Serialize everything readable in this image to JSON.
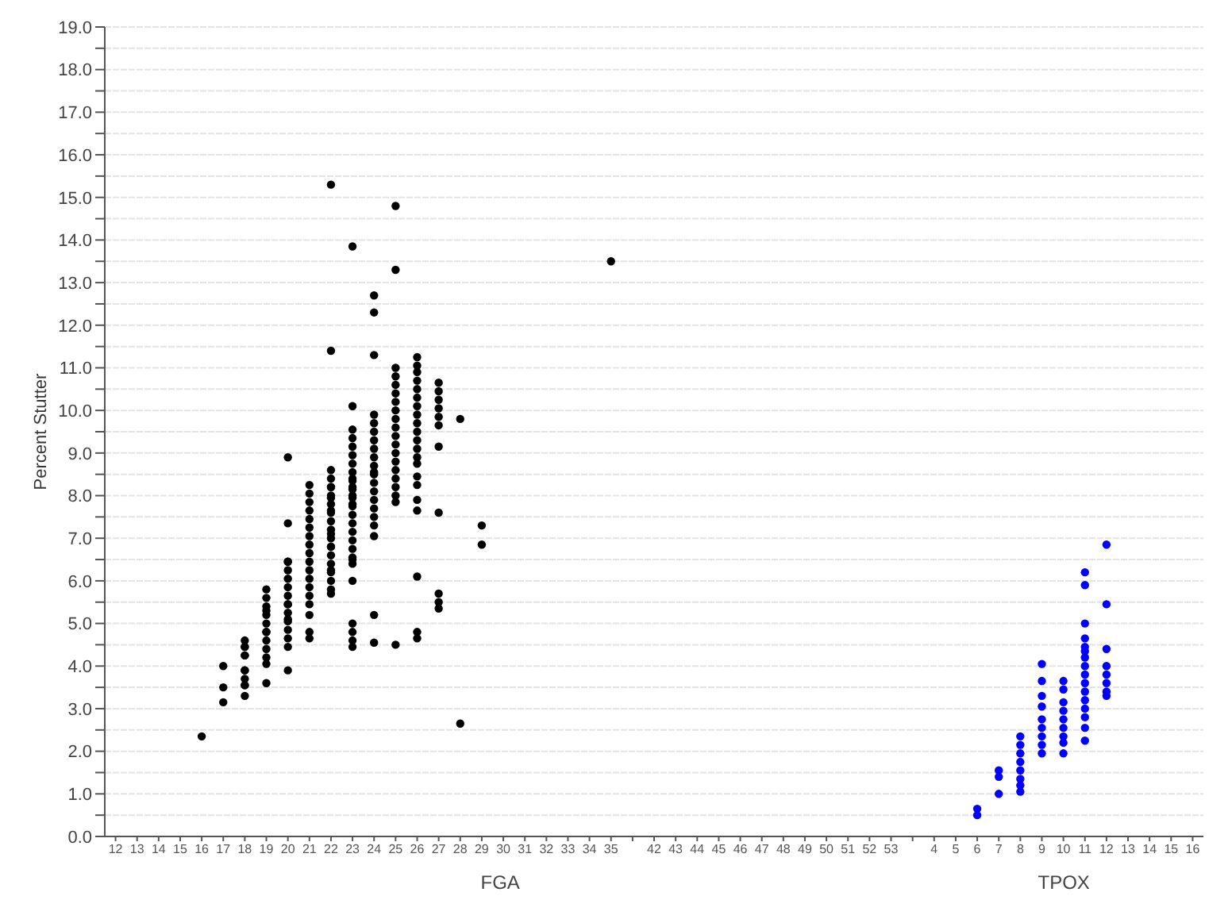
{
  "chart_data": {
    "type": "scatter",
    "ylabel": "Percent Stutter",
    "categories": [
      "12",
      "13",
      "14",
      "15",
      "16",
      "17",
      "18",
      "19",
      "20",
      "21",
      "22",
      "23",
      "24",
      "25",
      "26",
      "27",
      "28",
      "29",
      "30",
      "31",
      "32",
      "33",
      "34",
      "35",
      null,
      "42",
      "43",
      "44",
      "45",
      "46",
      "47",
      "48",
      "49",
      "50",
      "51",
      "52",
      "53",
      null,
      "4",
      "5",
      "6",
      "7",
      "8",
      "9",
      "10",
      "11",
      "12",
      "13",
      "14",
      "15",
      "16"
    ],
    "series": [
      {
        "color": "#000000",
        "x": [
          "16",
          "17",
          "17",
          "17",
          "18",
          "18",
          "18",
          "18",
          "18",
          "18",
          "18",
          "18",
          "18",
          "18",
          "18",
          "19",
          "19",
          "19",
          "19",
          "19",
          "19",
          "19",
          "19",
          "19",
          "19",
          "19",
          "19",
          "19",
          "20",
          "20",
          "20",
          "20",
          "20",
          "20",
          "20",
          "20",
          "20",
          "20",
          "20",
          "20",
          "20",
          "20",
          "20",
          "20",
          "20",
          "21",
          "21",
          "21",
          "21",
          "21",
          "21",
          "21",
          "21",
          "21",
          "21",
          "21",
          "21",
          "21",
          "21",
          "21",
          "21",
          "21",
          "21",
          "22",
          "22",
          "22",
          "22",
          "22",
          "22",
          "22",
          "22",
          "22",
          "22",
          "22",
          "22",
          "22",
          "22",
          "22",
          "22",
          "22",
          "22",
          "22",
          "22",
          "22",
          "22",
          "22",
          "22",
          "23",
          "23",
          "23",
          "23",
          "23",
          "23",
          "23",
          "23",
          "23",
          "23",
          "23",
          "23",
          "23",
          "23",
          "23",
          "23",
          "23",
          "23",
          "23",
          "23",
          "23",
          "23",
          "23",
          "23",
          "23",
          "23",
          "23",
          "23",
          "23",
          "24",
          "24",
          "24",
          "24",
          "24",
          "24",
          "24",
          "24",
          "24",
          "24",
          "24",
          "24",
          "24",
          "24",
          "24",
          "24",
          "24",
          "24",
          "24",
          "24",
          "24",
          "25",
          "25",
          "25",
          "25",
          "25",
          "25",
          "25",
          "25",
          "25",
          "25",
          "25",
          "25",
          "25",
          "25",
          "25",
          "25",
          "25",
          "25",
          "25",
          "25",
          "26",
          "26",
          "26",
          "26",
          "26",
          "26",
          "26",
          "26",
          "26",
          "26",
          "26",
          "26",
          "26",
          "26",
          "26",
          "26",
          "26",
          "26",
          "26",
          "26",
          "26",
          "27",
          "27",
          "27",
          "27",
          "27",
          "27",
          "27",
          "27",
          "27",
          "27",
          "27",
          "28",
          "28",
          "29",
          "29",
          "35"
        ],
        "values": [
          2.35,
          4.0,
          3.15,
          3.5,
          4.6,
          4.45,
          4.25,
          3.9,
          3.7,
          3.55,
          3.3,
          4.45,
          4.25,
          3.9,
          3.55,
          5.8,
          5.6,
          5.4,
          5.2,
          5.0,
          4.8,
          4.6,
          4.4,
          4.2,
          4.05,
          3.6,
          5.3,
          4.8,
          8.9,
          7.35,
          6.45,
          6.25,
          6.05,
          5.85,
          5.65,
          5.45,
          5.25,
          5.05,
          4.85,
          4.65,
          4.45,
          3.9,
          6.45,
          5.45,
          5.1,
          8.25,
          8.05,
          7.85,
          7.65,
          7.45,
          7.25,
          7.05,
          6.85,
          6.65,
          6.45,
          6.25,
          6.05,
          5.85,
          5.65,
          5.45,
          5.2,
          4.8,
          4.65,
          15.3,
          11.4,
          8.6,
          8.4,
          8.2,
          8.0,
          7.8,
          7.6,
          7.4,
          7.2,
          7.0,
          6.8,
          6.6,
          6.4,
          6.2,
          6.0,
          5.8,
          5.7,
          8.2,
          7.95,
          7.65,
          7.1,
          6.8,
          6.25,
          13.85,
          10.1,
          9.55,
          9.35,
          9.15,
          8.95,
          8.75,
          8.55,
          8.35,
          8.15,
          7.95,
          7.75,
          7.55,
          7.35,
          7.15,
          6.95,
          6.75,
          6.55,
          6.4,
          6.0,
          8.4,
          8.2,
          8.0,
          7.8,
          6.5,
          5.0,
          4.8,
          4.6,
          4.45,
          12.7,
          12.3,
          11.3,
          9.9,
          9.7,
          9.5,
          9.3,
          9.1,
          8.9,
          8.7,
          8.5,
          8.3,
          8.1,
          7.9,
          7.7,
          7.5,
          7.3,
          7.05,
          5.2,
          4.55,
          8.55,
          14.8,
          13.3,
          11.0,
          10.8,
          10.6,
          10.4,
          10.2,
          10.0,
          9.8,
          9.6,
          9.4,
          9.2,
          9.0,
          8.8,
          8.6,
          8.4,
          8.2,
          8.0,
          7.85,
          4.5,
          11.25,
          11.05,
          10.9,
          10.7,
          10.5,
          10.3,
          10.1,
          9.9,
          9.7,
          9.5,
          9.3,
          9.1,
          8.9,
          8.75,
          8.45,
          8.25,
          7.9,
          7.65,
          6.1,
          4.8,
          4.65,
          10.65,
          10.45,
          10.25,
          10.05,
          9.85,
          9.65,
          9.15,
          7.6,
          5.7,
          5.5,
          5.35,
          9.8,
          2.65,
          7.3,
          6.85,
          13.5
        ]
      },
      {
        "color": "#0000ff",
        "x": [
          "6",
          "6",
          "7",
          "7",
          "7",
          "8",
          "8",
          "8",
          "8",
          "8",
          "8",
          "8",
          "8",
          "9",
          "9",
          "9",
          "9",
          "9",
          "9",
          "9",
          "9",
          "9",
          "10",
          "10",
          "10",
          "10",
          "10",
          "10",
          "10",
          "10",
          "10",
          "11",
          "11",
          "11",
          "11",
          "11",
          "11",
          "11",
          "11",
          "11",
          "11",
          "11",
          "11",
          "11",
          "11",
          "11",
          "11"
        ],
        "values": [
          0.65,
          0.5,
          1.55,
          1.4,
          1.0,
          2.35,
          2.15,
          1.95,
          1.75,
          1.55,
          1.35,
          1.2,
          1.05,
          4.05,
          3.65,
          3.3,
          3.05,
          2.75,
          2.55,
          2.35,
          2.15,
          1.95,
          3.65,
          3.45,
          3.15,
          2.95,
          2.75,
          2.55,
          2.35,
          2.2,
          1.95,
          6.2,
          5.9,
          5.0,
          4.65,
          4.45,
          4.35,
          4.2,
          4.0,
          3.8,
          3.6,
          3.4,
          3.2,
          3.0,
          2.8,
          2.55,
          2.25
        ]
      },
      {
        "color": "#0000ff",
        "values": [
          null,
          null,
          null,
          null,
          null,
          null,
          null,
          null,
          null,
          null,
          null,
          null,
          null,
          null,
          null,
          null,
          null,
          null,
          null,
          null,
          null,
          null,
          null,
          null,
          null,
          null,
          null,
          null,
          null,
          null,
          null,
          null,
          null,
          null,
          null,
          null,
          null,
          null,
          null,
          null,
          null,
          null,
          null,
          null,
          null,
          null,
          6.85,
          null,
          null,
          null,
          null
        ]
      },
      {
        "color": "#0000ff",
        "values": [
          null,
          null,
          null,
          null,
          null,
          null,
          null,
          null,
          null,
          null,
          null,
          null,
          null,
          null,
          null,
          null,
          null,
          null,
          null,
          null,
          null,
          null,
          null,
          null,
          null,
          null,
          null,
          null,
          null,
          null,
          null,
          null,
          null,
          null,
          null,
          null,
          null,
          null,
          null,
          null,
          null,
          null,
          null,
          null,
          null,
          null,
          5.45,
          null,
          null,
          null,
          null
        ]
      },
      {
        "color": "#0000ff",
        "values": [
          null,
          null,
          null,
          null,
          null,
          null,
          null,
          null,
          null,
          null,
          null,
          null,
          null,
          null,
          null,
          null,
          null,
          null,
          null,
          null,
          null,
          null,
          null,
          null,
          null,
          null,
          null,
          null,
          null,
          null,
          null,
          null,
          null,
          null,
          null,
          null,
          null,
          null,
          null,
          null,
          null,
          null,
          null,
          null,
          null,
          null,
          4.4,
          null,
          null,
          null,
          null
        ]
      },
      {
        "color": "#0000ff",
        "values": [
          null,
          null,
          null,
          null,
          null,
          null,
          null,
          null,
          null,
          null,
          null,
          null,
          null,
          null,
          null,
          null,
          null,
          null,
          null,
          null,
          null,
          null,
          null,
          null,
          null,
          null,
          null,
          null,
          null,
          null,
          null,
          null,
          null,
          null,
          null,
          null,
          null,
          null,
          null,
          null,
          null,
          null,
          null,
          null,
          null,
          null,
          4.0,
          null,
          null,
          null,
          null
        ]
      },
      {
        "color": "#0000ff",
        "values": [
          null,
          null,
          null,
          null,
          null,
          null,
          null,
          null,
          null,
          null,
          null,
          null,
          null,
          null,
          null,
          null,
          null,
          null,
          null,
          null,
          null,
          null,
          null,
          null,
          null,
          null,
          null,
          null,
          null,
          null,
          null,
          null,
          null,
          null,
          null,
          null,
          null,
          null,
          null,
          null,
          null,
          null,
          null,
          null,
          null,
          null,
          3.8,
          null,
          null,
          null,
          null
        ]
      },
      {
        "color": "#0000ff",
        "values": [
          null,
          null,
          null,
          null,
          null,
          null,
          null,
          null,
          null,
          null,
          null,
          null,
          null,
          null,
          null,
          null,
          null,
          null,
          null,
          null,
          null,
          null,
          null,
          null,
          null,
          null,
          null,
          null,
          null,
          null,
          null,
          null,
          null,
          null,
          null,
          null,
          null,
          null,
          null,
          null,
          null,
          null,
          null,
          null,
          null,
          null,
          3.6,
          null,
          null,
          null,
          null
        ]
      },
      {
        "color": "#0000ff",
        "values": [
          null,
          null,
          null,
          null,
          null,
          null,
          null,
          null,
          null,
          null,
          null,
          null,
          null,
          null,
          null,
          null,
          null,
          null,
          null,
          null,
          null,
          null,
          null,
          null,
          null,
          null,
          null,
          null,
          null,
          null,
          null,
          null,
          null,
          null,
          null,
          null,
          null,
          null,
          null,
          null,
          null,
          null,
          null,
          null,
          null,
          null,
          3.4,
          null,
          null,
          null,
          null
        ]
      },
      {
        "color": "#0000ff",
        "values": [
          null,
          null,
          null,
          null,
          null,
          null,
          null,
          null,
          null,
          null,
          null,
          null,
          null,
          null,
          null,
          null,
          null,
          null,
          null,
          null,
          null,
          null,
          null,
          null,
          null,
          null,
          null,
          null,
          null,
          null,
          null,
          null,
          null,
          null,
          null,
          null,
          null,
          null,
          null,
          null,
          null,
          null,
          null,
          null,
          null,
          null,
          3.3,
          null,
          null,
          null,
          null
        ]
      }
    ],
    "annotations": [
      "FGA",
      "TPOX"
    ],
    "ylim": [
      0,
      19
    ],
    "yticks": [
      {
        "value": 0,
        "label": "0.0"
      },
      {
        "value": 0.5,
        "label": null
      },
      {
        "value": 1,
        "label": "1.0"
      },
      {
        "value": 1.5,
        "label": null
      },
      {
        "value": 2,
        "label": "2.0"
      },
      {
        "value": 2.5,
        "label": null
      },
      {
        "value": 3,
        "label": "3.0"
      },
      {
        "value": 3.5,
        "label": null
      },
      {
        "value": 4,
        "label": "4.0"
      },
      {
        "value": 4.5,
        "label": null
      },
      {
        "value": 5,
        "label": "5.0"
      },
      {
        "value": 5.5,
        "label": null
      },
      {
        "value": 6,
        "label": "6.0"
      },
      {
        "value": 6.5,
        "label": null
      },
      {
        "value": 7,
        "label": "7.0"
      },
      {
        "value": 7.5,
        "label": null
      },
      {
        "value": 8,
        "label": "8.0"
      },
      {
        "value": 8.5,
        "label": null
      },
      {
        "value": 9,
        "label": "9.0"
      },
      {
        "value": 9.5,
        "label": null
      },
      {
        "value": 10,
        "label": "10.0"
      },
      {
        "value": 10.5,
        "label": null
      },
      {
        "value": 11,
        "label": "11.0"
      },
      {
        "value": 11.5,
        "label": null
      },
      {
        "value": 12,
        "label": "12.0"
      },
      {
        "value": 12.5,
        "label": null
      },
      {
        "value": 13,
        "label": "13.0"
      },
      {
        "value": 13.5,
        "label": null
      },
      {
        "value": 14,
        "label": "14.0"
      },
      {
        "value": 14.5,
        "label": null
      },
      {
        "value": 15,
        "label": "15.0"
      },
      {
        "value": 15.5,
        "label": null
      },
      {
        "value": 16,
        "label": "16.0"
      },
      {
        "value": 16.5,
        "label": null
      },
      {
        "value": 17,
        "label": "17.0"
      },
      {
        "value": 17.5,
        "label": null
      },
      {
        "value": 18,
        "label": "18.0"
      },
      {
        "value": 18.5,
        "label": null
      },
      {
        "value": 19,
        "label": "19.0"
      }
    ],
    "grid": "y",
    "legend": false,
    "marker": "circle"
  }
}
